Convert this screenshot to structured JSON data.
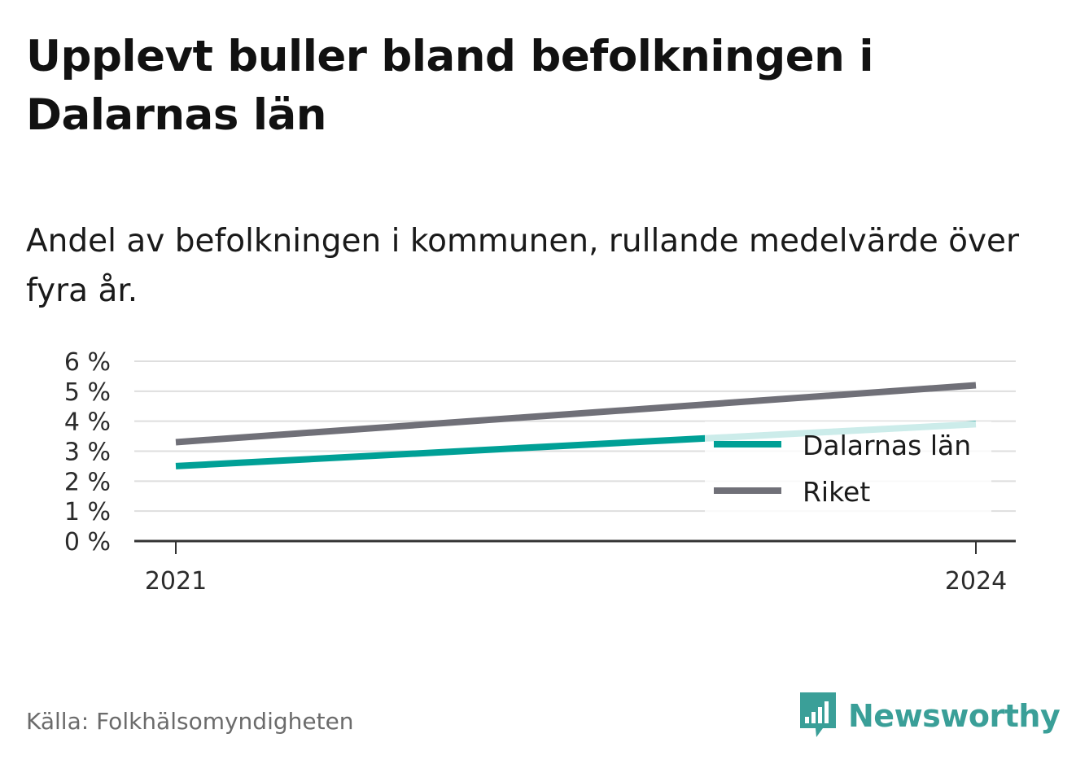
{
  "header": {
    "title": "Upplevt buller bland befolkningen i Dalarnas län",
    "subtitle": "Andel av befolkningen i kommunen, rullande medelvärde över fyra år."
  },
  "footer": {
    "source": "Källa: Folkhälsomyndigheten",
    "brand": "Newsworthy",
    "brand_icon": "bar-chart-speech-bubble-icon"
  },
  "colors": {
    "dalarnas_lan": "#00a096",
    "dalarnas_lan_faded": "#cde9e6",
    "riket": "#707078",
    "grid": "#dedede",
    "axis": "#333333",
    "brand": "#3a9f98"
  },
  "chart_data": {
    "type": "line",
    "title": "Upplevt buller bland befolkningen i Dalarnas län",
    "subtitle": "Andel av befolkningen i kommunen, rullande medelvärde över fyra år.",
    "x": [
      2021,
      2024
    ],
    "x_tick_labels": [
      "2021",
      "2024"
    ],
    "y_ticks": [
      0,
      1,
      2,
      3,
      4,
      5,
      6
    ],
    "y_tick_labels": [
      "0 %",
      "1 %",
      "2 %",
      "3 %",
      "4 %",
      "5 %",
      "6 %"
    ],
    "ylim": [
      0,
      6
    ],
    "grid": true,
    "legend_position": "right",
    "series": [
      {
        "name": "Dalarnas län",
        "values": [
          2.5,
          3.9
        ]
      },
      {
        "name": "Riket",
        "values": [
          3.3,
          5.2
        ]
      }
    ]
  }
}
